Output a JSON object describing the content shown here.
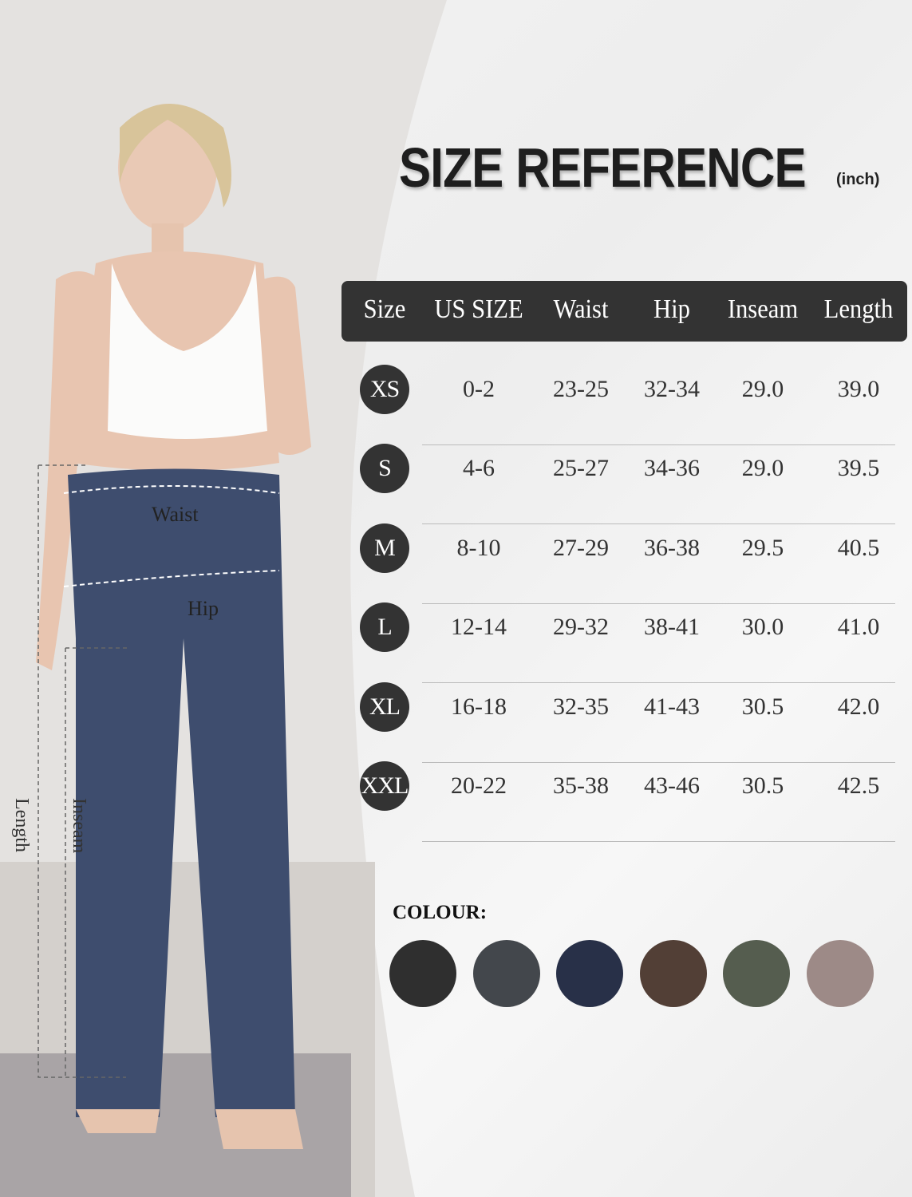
{
  "title": "SIZE REFERENCE",
  "unit": "(inch)",
  "table": {
    "headers": [
      "Size",
      "US SIZE",
      "Waist",
      "Hip",
      "Inseam",
      "Length"
    ],
    "rows": [
      [
        "XS",
        "0-2",
        "23-25",
        "32-34",
        "29.0",
        "39.0"
      ],
      [
        "S",
        "4-6",
        "25-27",
        "34-36",
        "29.0",
        "39.5"
      ],
      [
        "M",
        "8-10",
        "27-29",
        "36-38",
        "29.5",
        "40.5"
      ],
      [
        "L",
        "12-14",
        "29-32",
        "38-41",
        "30.0",
        "41.0"
      ],
      [
        "XL",
        "16-18",
        "32-35",
        "41-43",
        "30.5",
        "42.0"
      ],
      [
        "XXL",
        "20-22",
        "35-38",
        "43-46",
        "30.5",
        "42.5"
      ]
    ]
  },
  "colour": {
    "label": "COLOUR:",
    "swatches": [
      "#2f2f2f",
      "#43474c",
      "#283048",
      "#523f36",
      "#555d4f",
      "#9d8a87"
    ]
  },
  "measurements": {
    "waist": "Waist",
    "hip": "Hip",
    "length": "Length",
    "inseam": "Inseam"
  }
}
